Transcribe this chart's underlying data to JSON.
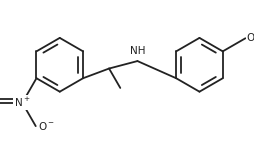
{
  "bg": "#ffffff",
  "lc": "#222222",
  "lw": 1.3,
  "fs": 7.5,
  "r": 0.36,
  "lcx": 0.95,
  "lcy": 0.6,
  "rcx": 2.82,
  "rcy": 0.6
}
